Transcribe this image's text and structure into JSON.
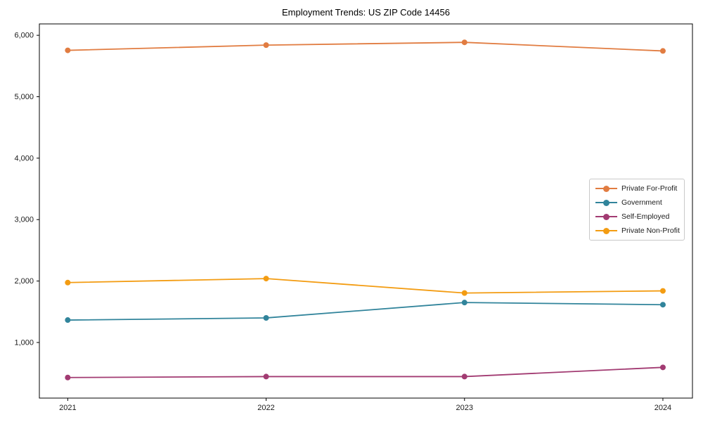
{
  "figure": {
    "background": "#ffffff"
  },
  "chart_data": {
    "type": "line",
    "title": "Employment Trends: US ZIP Code 14456",
    "categories": [
      2021,
      2022,
      2023,
      2024
    ],
    "series": [
      {
        "name": "Private For-Profit",
        "color": "#E17C41",
        "values": [
          5755,
          5840,
          5885,
          5745
        ]
      },
      {
        "name": "Government",
        "color": "#31849B",
        "values": [
          1365,
          1400,
          1650,
          1615
        ]
      },
      {
        "name": "Self-Employed",
        "color": "#A23B72",
        "values": [
          430,
          445,
          445,
          595
        ]
      },
      {
        "name": "Private Non-Profit",
        "color": "#F39C12",
        "values": [
          1975,
          2040,
          1805,
          1840
        ]
      }
    ],
    "xlabel": "",
    "ylabel": "",
    "yticks": [
      1000,
      2000,
      3000,
      4000,
      5000,
      6000
    ],
    "ytick_labels": [
      "1,000",
      "2,000",
      "3,000",
      "4,000",
      "5,000",
      "6,000"
    ],
    "xtick_labels": [
      "2021",
      "2022",
      "2023",
      "2024"
    ],
    "xlim": [
      2020.857,
      2024.149
    ],
    "ylim": [
      95,
      6185
    ],
    "grid": false,
    "marker": "circle",
    "legend": {
      "position": "right-middle",
      "border_color": "#c9c9c9"
    }
  }
}
